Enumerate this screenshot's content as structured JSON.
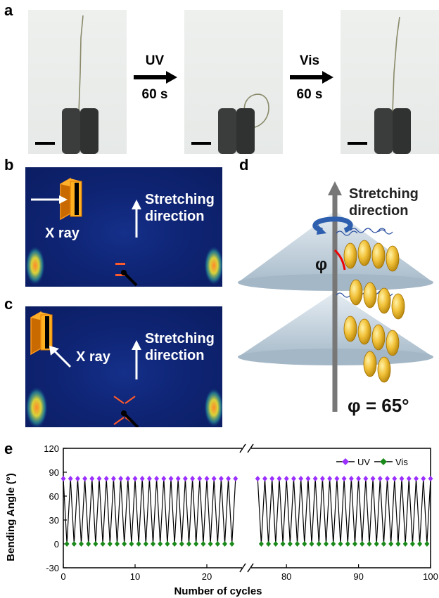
{
  "panels": {
    "a": "a",
    "b": "b",
    "c": "c",
    "d": "d",
    "e": "e"
  },
  "panel_a": {
    "step1_label": "UV",
    "step1_time": "60 s",
    "step2_label": "Vis",
    "step2_time": "60 s"
  },
  "panel_b": {
    "xray": "X ray",
    "stretch_line1": "Stretching",
    "stretch_line2": "direction"
  },
  "panel_c": {
    "xray": "X ray",
    "stretch_line1": "Stretching",
    "stretch_line2": "direction"
  },
  "panel_d": {
    "stretch_line1": "Stretching",
    "stretch_line2": "direction",
    "phi": "φ",
    "phi_eq": "φ = 65°"
  },
  "colors": {
    "uv": "#9b30ff",
    "vis": "#1a8a1a",
    "line": "#000000",
    "xrd_bg": "#0f2576"
  },
  "chart_data": {
    "type": "line",
    "xlabel": "Number of cycles",
    "ylabel": "Bending Angle (°)",
    "ylim": [
      -30,
      120
    ],
    "yticks": [
      -30,
      0,
      30,
      60,
      90,
      120
    ],
    "x_broken_axis": {
      "segment1": [
        0,
        25
      ],
      "segment2": [
        75,
        100
      ]
    },
    "xticks_seg1": [
      0,
      10,
      20
    ],
    "xticks_seg2": [
      80,
      90,
      100
    ],
    "legend": "top-right",
    "series": [
      {
        "name": "UV",
        "marker": "diamond",
        "color": "#9b30ff",
        "value_approx": 82
      },
      {
        "name": "Vis",
        "marker": "diamond",
        "color": "#1a8a1a",
        "value_approx": 0
      }
    ]
  }
}
